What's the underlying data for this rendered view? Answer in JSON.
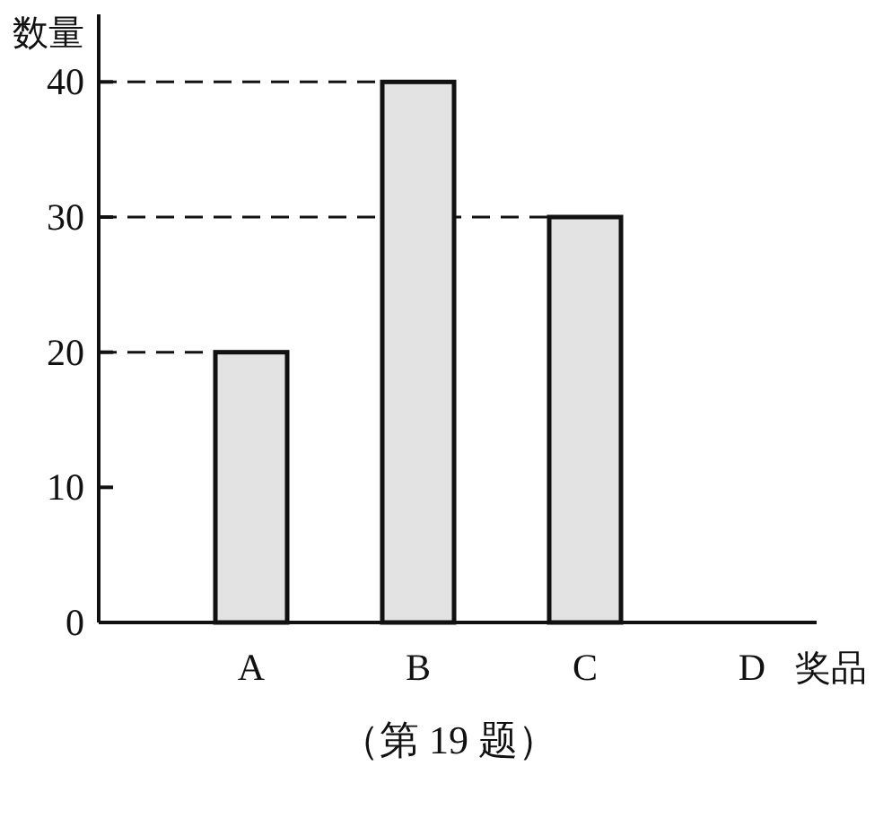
{
  "chart_data": {
    "type": "bar",
    "ylabel": "数量",
    "xlabel": "奖品",
    "categories": [
      "A",
      "B",
      "C",
      "D"
    ],
    "values": [
      20,
      40,
      30,
      null
    ],
    "color": "#e3e3e3",
    "ylim": [
      0,
      45
    ],
    "yticks": [
      0,
      10,
      20,
      30,
      40
    ],
    "ref_lines": [
      {
        "axis": "y",
        "value": 20,
        "label": null,
        "line_style": "dashed",
        "color": "#111111"
      },
      {
        "axis": "y",
        "value": 30,
        "label": null,
        "line_style": "dashed",
        "color": "#111111"
      },
      {
        "axis": "y",
        "value": 40,
        "label": null,
        "line_style": "dashed",
        "color": "#111111"
      }
    ],
    "annotations": [
      "（第 19 题）"
    ]
  }
}
